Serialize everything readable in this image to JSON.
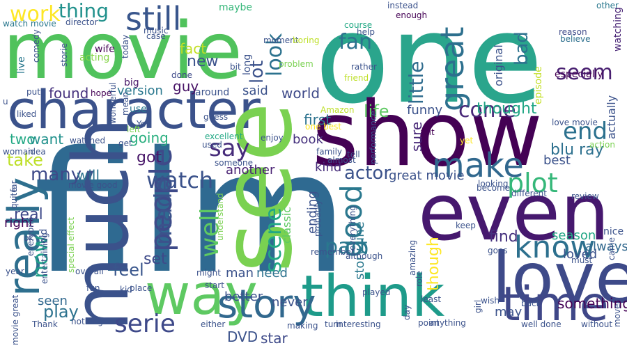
{
  "words": [
    {
      "text": "one",
      "color": "#2aa58c"
    },
    {
      "text": "film",
      "color": "#2f6a91"
    },
    {
      "text": "movie",
      "color": "#50c25c"
    },
    {
      "text": "show",
      "color": "#440154"
    },
    {
      "text": "character",
      "color": "#3b528b"
    },
    {
      "text": "think",
      "color": "#1e9b8a"
    },
    {
      "text": "see",
      "color": "#7ad151"
    },
    {
      "text": "even",
      "color": "#46186e"
    },
    {
      "text": "love",
      "color": "#3e4a89"
    },
    {
      "text": "much",
      "color": "#3b528b"
    },
    {
      "text": "time",
      "color": "#3f4788"
    },
    {
      "text": "way",
      "color": "#5ec962"
    },
    {
      "text": "story",
      "color": "#31688e"
    },
    {
      "text": "still",
      "color": "#39568c"
    },
    {
      "text": "really",
      "color": "#2e6f8e"
    },
    {
      "text": "make",
      "color": "#31688e"
    },
    {
      "text": "people",
      "color": "#3e4a89"
    },
    {
      "text": "good",
      "color": "#2a788e"
    },
    {
      "text": "great",
      "color": "#2d708e"
    },
    {
      "text": "scene",
      "color": "#22a884"
    },
    {
      "text": "made",
      "color": "#3b528b"
    },
    {
      "text": "well",
      "color": "#5ec962"
    },
    {
      "text": "know",
      "color": "#2d708e"
    },
    {
      "text": "end",
      "color": "#2c718e"
    },
    {
      "text": "serie",
      "color": "#3e4989"
    },
    {
      "text": "say",
      "color": "#472c7a"
    },
    {
      "text": "watch",
      "color": "#3b528b"
    },
    {
      "text": "look",
      "color": "#2c728e"
    },
    {
      "text": "come",
      "color": "#482878"
    },
    {
      "text": "plot",
      "color": "#35b779"
    },
    {
      "text": "work",
      "color": "#fde725"
    },
    {
      "text": "thing",
      "color": "#21918c"
    },
    {
      "text": "fan",
      "color": "#2c728e"
    },
    {
      "text": "lot",
      "color": "#3b528b"
    },
    {
      "text": "little",
      "color": "#2f6c8e"
    },
    {
      "text": "seem",
      "color": "#481f70"
    },
    {
      "text": "now",
      "color": "#1f9e89"
    },
    {
      "text": "part",
      "color": "#2a788e"
    },
    {
      "text": "life",
      "color": "#5ec962"
    },
    {
      "text": "find",
      "color": "#46327e"
    },
    {
      "text": "something",
      "color": "#440154"
    },
    {
      "text": "always",
      "color": "#31688e"
    },
    {
      "text": "take",
      "color": "#bddf26"
    },
    {
      "text": "thought",
      "color": "#21a685"
    },
    {
      "text": "actor",
      "color": "#3b528b"
    },
    {
      "text": "blu ray",
      "color": "#2d708e"
    },
    {
      "text": "bad",
      "color": "#2c728e"
    },
    {
      "text": "DVD",
      "color": "#3b528b"
    },
    {
      "text": "best",
      "color": "#3b528b"
    },
    {
      "text": "new",
      "color": "#3b528b"
    },
    {
      "text": "got",
      "color": "#481769"
    },
    {
      "text": "many",
      "color": "#3e4a89"
    },
    {
      "text": "two",
      "color": "#22a884"
    },
    {
      "text": "want",
      "color": "#21918c"
    },
    {
      "text": "found",
      "color": "#46327e"
    },
    {
      "text": "guy",
      "color": "#481467"
    },
    {
      "text": "version",
      "color": "#2a788e"
    },
    {
      "text": "fact",
      "color": "#c2df23"
    },
    {
      "text": "said",
      "color": "#3b528b"
    },
    {
      "text": "world",
      "color": "#3e4a89"
    },
    {
      "text": "going",
      "color": "#29af7f"
    },
    {
      "text": "first",
      "color": "#2c728e"
    },
    {
      "text": "book",
      "color": "#46327e"
    },
    {
      "text": "set",
      "color": "#3e4a89"
    },
    {
      "text": "feel",
      "color": "#39568c"
    },
    {
      "text": "real",
      "color": "#3e4989"
    },
    {
      "text": "right",
      "color": "#450457"
    },
    {
      "text": "seen",
      "color": "#31688e"
    },
    {
      "text": "play",
      "color": "#2c728e"
    },
    {
      "text": "will",
      "color": "#2c728e"
    },
    {
      "text": "another",
      "color": "#482173"
    },
    {
      "text": "man",
      "color": "#3b528b"
    },
    {
      "text": "need",
      "color": "#2c728e"
    },
    {
      "text": "better",
      "color": "#3b528b"
    },
    {
      "text": "never",
      "color": "#3b528b"
    },
    {
      "text": "star",
      "color": "#3e4a89"
    },
    {
      "text": "kind",
      "color": "#472d7b"
    },
    {
      "text": "funny",
      "color": "#3b528b"
    },
    {
      "text": "sure",
      "color": "#482878"
    },
    {
      "text": "great movie",
      "color": "#3b528b"
    },
    {
      "text": "ending",
      "color": "#3b528b"
    },
    {
      "text": "story line",
      "color": "#2a788e"
    },
    {
      "text": "though",
      "color": "#fde725"
    },
    {
      "text": "may",
      "color": "#3b528b"
    },
    {
      "text": "season",
      "color": "#21a685"
    },
    {
      "text": "loved",
      "color": "#3b528b"
    },
    {
      "text": "classic",
      "color": "#5ec962"
    },
    {
      "text": "episode",
      "color": "#c2df23"
    },
    {
      "text": "original",
      "color": "#3b528b"
    },
    {
      "text": "actually",
      "color": "#3b528b"
    },
    {
      "text": "especially",
      "color": "#440154"
    },
    {
      "text": "believe",
      "color": "#2d708e"
    },
    {
      "text": "reason",
      "color": "#3e4a89"
    },
    {
      "text": "watching",
      "color": "#482475"
    },
    {
      "text": "maybe",
      "color": "#35b779"
    },
    {
      "text": "instead",
      "color": "#3b528b"
    },
    {
      "text": "enough",
      "color": "#440154"
    },
    {
      "text": "other",
      "color": "#2a788e"
    },
    {
      "text": "course",
      "color": "#22a884"
    },
    {
      "text": "help",
      "color": "#3b528b"
    },
    {
      "text": "rather",
      "color": "#3b528b"
    },
    {
      "text": "friend",
      "color": "#bddf26"
    },
    {
      "text": "problem",
      "color": "#7ad151"
    },
    {
      "text": "moment",
      "color": "#3b528b"
    },
    {
      "text": "boring",
      "color": "#bddf26"
    },
    {
      "text": "watch movie",
      "color": "#2a788e"
    },
    {
      "text": "director",
      "color": "#3b528b"
    },
    {
      "text": "music",
      "color": "#3b528b"
    },
    {
      "text": "case",
      "color": "#3b528b"
    },
    {
      "text": "wife",
      "color": "#440154"
    },
    {
      "text": "acting",
      "color": "#86d549"
    },
    {
      "text": "today",
      "color": "#3b528b"
    },
    {
      "text": "big",
      "color": "#481769"
    },
    {
      "text": "done",
      "color": "#3e4a89"
    },
    {
      "text": "bit",
      "color": "#3b528b"
    },
    {
      "text": "long",
      "color": "#3b528b"
    },
    {
      "text": "live",
      "color": "#2a788e"
    },
    {
      "text": "comedy",
      "color": "#3b528b"
    },
    {
      "text": "put",
      "color": "#3b528b"
    },
    {
      "text": "hope",
      "color": "#440154"
    },
    {
      "text": "around",
      "color": "#3b528b"
    },
    {
      "text": "liked",
      "color": "#3b528b"
    },
    {
      "text": "use",
      "color": "#2a788e"
    },
    {
      "text": "mean",
      "color": "#3b528b"
    },
    {
      "text": "Ye",
      "color": "#3b528b"
    },
    {
      "text": "left",
      "color": "#7ad151"
    },
    {
      "text": "guess",
      "color": "#3b528b"
    },
    {
      "text": "Amazon",
      "color": "#bddf26"
    },
    {
      "text": "one best",
      "color": "#fde725"
    },
    {
      "text": "excellent",
      "color": "#22a884"
    },
    {
      "text": "enjoy",
      "color": "#3b528b"
    },
    {
      "text": "performance",
      "color": "#3b528b"
    },
    {
      "text": "felt",
      "color": "#440154"
    },
    {
      "text": "love movie",
      "color": "#3b528b"
    },
    {
      "text": "yet",
      "color": "#fde725"
    },
    {
      "text": "action",
      "color": "#7ad151"
    },
    {
      "text": "watched",
      "color": "#3b528b"
    },
    {
      "text": "idea",
      "color": "#3b528b"
    },
    {
      "text": "woman",
      "color": "#3b528b"
    },
    {
      "text": "used",
      "color": "#3b528b"
    },
    {
      "text": "someone",
      "color": "#3b528b"
    },
    {
      "text": "family",
      "color": "#3b528b"
    },
    {
      "text": "almost",
      "color": "#3b528b"
    },
    {
      "text": "tell",
      "color": "#3b528b"
    },
    {
      "text": "movie good",
      "color": "#3b528b"
    },
    {
      "text": "far",
      "color": "#3b528b"
    },
    {
      "text": "quite",
      "color": "#3b528b"
    },
    {
      "text": "ok",
      "color": "#3b528b"
    },
    {
      "text": "everyone",
      "color": "#3b528b"
    },
    {
      "text": "old",
      "color": "#3b528b"
    },
    {
      "text": "entertaining",
      "color": "#3b528b"
    },
    {
      "text": "year",
      "color": "#3b528b"
    },
    {
      "text": "special effect",
      "color": "#7ad151"
    },
    {
      "text": "overall",
      "color": "#3b528b"
    },
    {
      "text": "might",
      "color": "#3b528b"
    },
    {
      "text": "start",
      "color": "#3b528b"
    },
    {
      "text": "place",
      "color": "#3b528b"
    },
    {
      "text": "fun",
      "color": "#3b528b"
    },
    {
      "text": "kid",
      "color": "#3b528b"
    },
    {
      "text": "understand",
      "color": "#7ad151"
    },
    {
      "text": "remember",
      "color": "#3b528b"
    },
    {
      "text": "although",
      "color": "#3b528b"
    },
    {
      "text": "everything",
      "color": "#3b528b"
    },
    {
      "text": "probably",
      "color": "#3b528b"
    },
    {
      "text": "different",
      "color": "#3b528b"
    },
    {
      "text": "become",
      "color": "#3b528b"
    },
    {
      "text": "looking",
      "color": "#3b528b"
    },
    {
      "text": "review",
      "color": "#3b528b"
    },
    {
      "text": "nice",
      "color": "#3b528b"
    },
    {
      "text": "came",
      "color": "#3b528b"
    },
    {
      "text": "must",
      "color": "#3b528b"
    },
    {
      "text": "goes",
      "color": "#3b528b"
    },
    {
      "text": "keep",
      "color": "#3b528b"
    },
    {
      "text": "amazing",
      "color": "#3b528b"
    },
    {
      "text": "played",
      "color": "#3b528b"
    },
    {
      "text": "role",
      "color": "#3b528b"
    },
    {
      "text": "least",
      "color": "#3b528b"
    },
    {
      "text": "wish",
      "color": "#3b528b"
    },
    {
      "text": "back",
      "color": "#3b528b"
    },
    {
      "text": "girl",
      "color": "#3b528b"
    },
    {
      "text": "day",
      "color": "#3b528b"
    },
    {
      "text": "point",
      "color": "#3b528b"
    },
    {
      "text": "anything",
      "color": "#3b528b"
    },
    {
      "text": "without",
      "color": "#3b528b"
    },
    {
      "text": "well done",
      "color": "#3b528b"
    },
    {
      "text": "move",
      "color": "#3b528b"
    },
    {
      "text": "turn",
      "color": "#3b528b"
    },
    {
      "text": "interesting",
      "color": "#3b528b"
    },
    {
      "text": "making",
      "color": "#3b528b"
    },
    {
      "text": "either",
      "color": "#3b528b"
    },
    {
      "text": "nothing",
      "color": "#3b528b"
    },
    {
      "text": "Thank",
      "color": "#3b528b"
    },
    {
      "text": "movie great",
      "color": "#3b528b"
    },
    {
      "text": "storie",
      "color": "#3b528b"
    },
    {
      "text": "wonderful",
      "color": "#3b528b"
    },
    {
      "text": "get",
      "color": "#3b528b"
    },
    {
      "text": "u",
      "color": "#3b528b"
    }
  ]
}
